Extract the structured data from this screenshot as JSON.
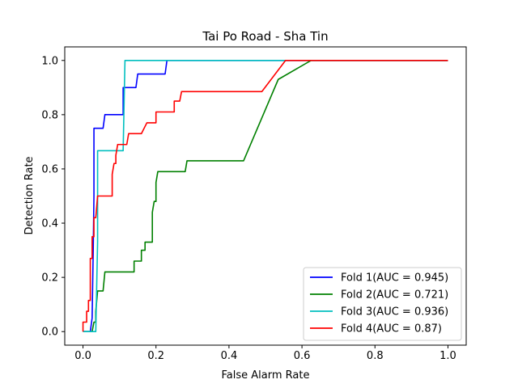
{
  "chart_data": {
    "type": "line",
    "title": "Tai Po Road - Sha Tin",
    "xlabel": "False Alarm Rate",
    "ylabel": "Detection Rate",
    "xlim": [
      -0.05,
      1.05
    ],
    "ylim": [
      -0.05,
      1.05
    ],
    "xticks": [
      0.0,
      0.2,
      0.4,
      0.6,
      0.8,
      1.0
    ],
    "yticks": [
      0.0,
      0.2,
      0.4,
      0.6,
      0.8,
      1.0
    ],
    "xtick_labels": [
      "0.0",
      "0.2",
      "0.4",
      "0.6",
      "0.8",
      "1.0"
    ],
    "ytick_labels": [
      "0.0",
      "0.2",
      "0.4",
      "0.6",
      "0.8",
      "1.0"
    ],
    "grid": false,
    "legend_position": "lower-right",
    "series": [
      {
        "name": "Fold 1(AUC = 0.945)",
        "color": "#0000ff",
        "x": [
          0.0,
          0.02,
          0.025,
          0.028,
          0.03,
          0.03,
          0.04,
          0.055,
          0.06,
          0.08,
          0.11,
          0.11,
          0.115,
          0.145,
          0.15,
          0.225,
          0.23,
          0.24,
          1.0
        ],
        "y": [
          0.0,
          0.0,
          0.05,
          0.3,
          0.5,
          0.75,
          0.75,
          0.75,
          0.8,
          0.8,
          0.8,
          0.9,
          0.9,
          0.9,
          0.95,
          0.95,
          1.0,
          1.0,
          1.0
        ]
      },
      {
        "name": "Fold 2(AUC = 0.721)",
        "color": "#008000",
        "x": [
          0.0,
          0.025,
          0.03,
          0.035,
          0.035,
          0.04,
          0.055,
          0.06,
          0.14,
          0.14,
          0.16,
          0.16,
          0.17,
          0.17,
          0.19,
          0.19,
          0.195,
          0.2,
          0.2,
          0.205,
          0.225,
          0.28,
          0.285,
          0.44,
          0.535,
          0.625,
          1.0
        ],
        "y": [
          0.0,
          0.0,
          0.035,
          0.035,
          0.075,
          0.15,
          0.15,
          0.22,
          0.22,
          0.26,
          0.26,
          0.3,
          0.3,
          0.33,
          0.33,
          0.44,
          0.48,
          0.48,
          0.55,
          0.59,
          0.59,
          0.59,
          0.63,
          0.63,
          0.93,
          1.0,
          1.0
        ]
      },
      {
        "name": "Fold 3(AUC = 0.936)",
        "color": "#00bfbf",
        "x": [
          0.0,
          0.035,
          0.04,
          0.04,
          0.11,
          0.115,
          1.0
        ],
        "y": [
          0.0,
          0.0,
          0.33,
          0.667,
          0.667,
          1.0,
          1.0
        ]
      },
      {
        "name": "Fold 4(AUC = 0.87)",
        "color": "#ff0000",
        "x": [
          0.0,
          0.0,
          0.01,
          0.01,
          0.015,
          0.015,
          0.02,
          0.02,
          0.025,
          0.025,
          0.03,
          0.03,
          0.035,
          0.04,
          0.045,
          0.05,
          0.08,
          0.08,
          0.085,
          0.09,
          0.09,
          0.095,
          0.1,
          0.1,
          0.12,
          0.125,
          0.125,
          0.16,
          0.175,
          0.175,
          0.2,
          0.2,
          0.25,
          0.25,
          0.265,
          0.27,
          0.28,
          0.49,
          0.555,
          1.0
        ],
        "y": [
          0.0,
          0.035,
          0.035,
          0.075,
          0.075,
          0.115,
          0.115,
          0.27,
          0.27,
          0.35,
          0.35,
          0.42,
          0.42,
          0.5,
          0.5,
          0.5,
          0.5,
          0.58,
          0.62,
          0.62,
          0.65,
          0.69,
          0.69,
          0.69,
          0.69,
          0.73,
          0.73,
          0.73,
          0.77,
          0.77,
          0.77,
          0.81,
          0.81,
          0.85,
          0.85,
          0.885,
          0.885,
          0.885,
          1.0,
          1.0
        ]
      }
    ]
  }
}
